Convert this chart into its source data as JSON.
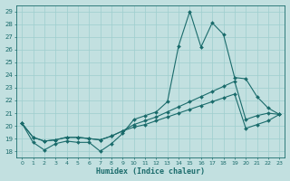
{
  "xlabel": "Humidex (Indice chaleur)",
  "x": [
    0,
    1,
    2,
    3,
    4,
    5,
    6,
    7,
    8,
    9,
    10,
    11,
    12,
    13,
    14,
    15,
    16,
    17,
    18,
    19,
    20,
    21,
    22,
    23
  ],
  "line_main": [
    20.2,
    18.7,
    18.1,
    18.6,
    18.8,
    18.7,
    18.7,
    18.0,
    18.6,
    19.4,
    20.5,
    20.8,
    21.1,
    21.9,
    26.3,
    29.0,
    26.2,
    28.1,
    27.2,
    23.8,
    23.7,
    22.3,
    21.4,
    20.9
  ],
  "line_trend1": [
    20.2,
    19.1,
    18.8,
    18.9,
    19.1,
    19.1,
    19.0,
    18.9,
    19.2,
    19.6,
    20.1,
    20.4,
    20.7,
    21.1,
    21.5,
    21.9,
    22.3,
    22.7,
    23.1,
    23.5,
    20.5,
    20.8,
    21.0,
    20.9
  ],
  "line_trend2": [
    20.2,
    19.1,
    18.8,
    18.9,
    19.1,
    19.1,
    19.0,
    18.9,
    19.2,
    19.6,
    19.9,
    20.1,
    20.4,
    20.7,
    21.0,
    21.3,
    21.6,
    21.9,
    22.2,
    22.5,
    19.8,
    20.1,
    20.4,
    20.9
  ],
  "bg_color": "#c2e0e0",
  "grid_color": "#9ecece",
  "line_color": "#1a6b6b",
  "ylim": [
    17.5,
    29.5
  ],
  "yticks": [
    18,
    19,
    20,
    21,
    22,
    23,
    24,
    25,
    26,
    27,
    28,
    29
  ],
  "marker_size": 2.0,
  "linewidth": 0.8
}
